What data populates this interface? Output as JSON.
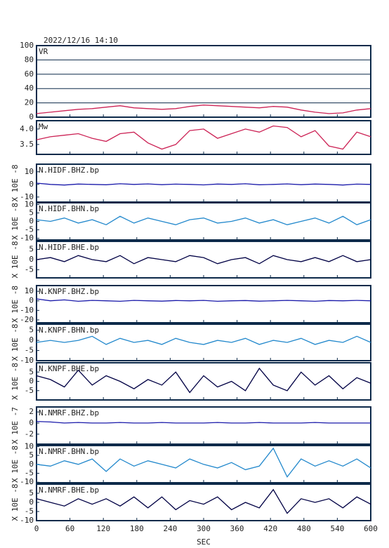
{
  "chart_data": [
    {
      "type": "line",
      "title": "2022/12/16  14:10",
      "label": "VR",
      "color": "#cc2255",
      "grid": true,
      "ylim": [
        0,
        100
      ],
      "yticks": [
        0,
        20,
        40,
        60,
        80,
        100
      ],
      "x": [
        0,
        25,
        50,
        75,
        100,
        125,
        150,
        175,
        200,
        225,
        250,
        275,
        300,
        325,
        350,
        375,
        400,
        425,
        450,
        475,
        500,
        525,
        550,
        575,
        600
      ],
      "values": [
        5,
        7,
        9,
        11,
        12,
        14,
        16,
        13,
        12,
        11,
        12,
        15,
        17,
        16,
        15,
        14,
        13,
        15,
        14,
        10,
        7,
        5,
        6,
        10,
        12
      ]
    },
    {
      "type": "line",
      "label": "Mw",
      "color": "#cc2255",
      "ylim": [
        3.18,
        4.27
      ],
      "yticks": [
        3.5,
        {
          "value": 4,
          "label": "4.0"
        }
      ],
      "x": [
        0,
        25,
        50,
        75,
        100,
        125,
        150,
        175,
        200,
        225,
        250,
        275,
        300,
        325,
        350,
        375,
        400,
        425,
        450,
        475,
        500,
        525,
        550,
        575,
        600
      ],
      "values": [
        3.65,
        3.75,
        3.8,
        3.85,
        3.7,
        3.6,
        3.85,
        3.9,
        3.55,
        3.35,
        3.5,
        3.95,
        4.0,
        3.7,
        3.85,
        4.0,
        3.9,
        4.1,
        4.05,
        3.75,
        3.95,
        3.45,
        3.35,
        3.9,
        3.75
      ]
    },
    {
      "type": "line",
      "label": "N.HIDF.BHZ.bp",
      "ylabel": "X 10E -8",
      "color": "#1a1aaa",
      "ylim": [
        -14,
        16
      ],
      "yticks": [
        -10,
        0,
        10
      ],
      "x": [
        0,
        25,
        50,
        75,
        100,
        125,
        150,
        175,
        200,
        225,
        250,
        275,
        300,
        325,
        350,
        375,
        400,
        425,
        450,
        475,
        500,
        525,
        550,
        575,
        600
      ],
      "values": [
        1,
        0,
        -0.5,
        0.3,
        0,
        -0.3,
        0.5,
        0,
        0.4,
        -0.2,
        0.2,
        0,
        -0.4,
        0.3,
        0,
        0.5,
        -0.3,
        0,
        0.4,
        -0.2,
        0.3,
        0,
        -0.5,
        0.2,
        0
      ]
    },
    {
      "type": "line",
      "label": "N.HIDF.BHN.bp",
      "ylabel": "X 10E -8",
      "color": "#2288cc",
      "ylim": [
        -11,
        11
      ],
      "yticks": [
        -10,
        -5,
        0,
        5,
        10
      ],
      "x": [
        0,
        25,
        50,
        75,
        100,
        125,
        150,
        175,
        200,
        225,
        250,
        275,
        300,
        325,
        350,
        375,
        400,
        425,
        450,
        475,
        500,
        525,
        550,
        575,
        600
      ],
      "values": [
        1,
        0,
        2,
        -1,
        1,
        -2,
        3,
        -1,
        2,
        0,
        -2,
        1,
        2,
        -1,
        0,
        2,
        -1,
        1,
        -2,
        0,
        2,
        -1,
        3,
        -2,
        1
      ]
    },
    {
      "type": "line",
      "label": "N.HIDF.BHE.bp",
      "ylabel": "X 10E -8",
      "color": "#000044",
      "ylim": [
        -9,
        9
      ],
      "yticks": [
        -5,
        0,
        5
      ],
      "x": [
        0,
        25,
        50,
        75,
        100,
        125,
        150,
        175,
        200,
        225,
        250,
        275,
        300,
        325,
        350,
        375,
        400,
        425,
        450,
        475,
        500,
        525,
        550,
        575,
        600
      ],
      "values": [
        0,
        1,
        -1,
        2,
        0,
        -1,
        2,
        -2,
        1,
        0,
        -1,
        2,
        1,
        -2,
        0,
        1,
        -2,
        2,
        0,
        -1,
        1,
        -1,
        2,
        -1,
        0
      ]
    },
    {
      "type": "line",
      "label": "N.KNPF.BHZ.bp",
      "ylabel": "X 10E -8",
      "color": "#1a1aaa",
      "ylim": [
        -23,
        16
      ],
      "yticks": [
        -20,
        -10,
        0,
        10
      ],
      "x": [
        0,
        25,
        50,
        75,
        100,
        125,
        150,
        175,
        200,
        225,
        250,
        275,
        300,
        325,
        350,
        375,
        400,
        425,
        450,
        475,
        500,
        525,
        550,
        575,
        600
      ],
      "values": [
        2,
        0,
        1,
        -0.5,
        0.5,
        0,
        -0.5,
        0.5,
        0,
        -0.3,
        0.3,
        0,
        0.5,
        -0.5,
        0,
        0.3,
        -0.3,
        0,
        0.5,
        0,
        -0.5,
        0.3,
        0,
        0.5,
        0
      ]
    },
    {
      "type": "line",
      "label": "N.KNPF.BHN.bp",
      "ylabel": "X 10E -8",
      "color": "#2288cc",
      "ylim": [
        -10,
        8
      ],
      "yticks": [
        -10,
        -5,
        0,
        5
      ],
      "x": [
        0,
        25,
        50,
        75,
        100,
        125,
        150,
        175,
        200,
        225,
        250,
        275,
        300,
        325,
        350,
        375,
        400,
        425,
        450,
        475,
        500,
        525,
        550,
        575,
        600
      ],
      "values": [
        -1,
        0,
        -1,
        0,
        2,
        -2,
        1,
        -1,
        0,
        -2,
        1,
        -1,
        -2,
        0,
        -1,
        1,
        -2,
        0,
        -1,
        1,
        -2,
        0,
        -1,
        2,
        -1
      ]
    },
    {
      "type": "line",
      "label": "N.KNPF.BHE.bp",
      "ylabel": "X 10E -8",
      "color": "#000044",
      "ylim": [
        -10,
        10
      ],
      "yticks": [
        -5,
        0,
        5
      ],
      "x": [
        0,
        25,
        50,
        75,
        100,
        125,
        150,
        175,
        200,
        225,
        250,
        275,
        300,
        325,
        350,
        375,
        400,
        425,
        450,
        475,
        500,
        525,
        550,
        575,
        600
      ],
      "values": [
        3,
        1,
        -3,
        6,
        -2,
        3,
        0,
        -4,
        1,
        -2,
        5,
        -6,
        3,
        -3,
        0,
        -5,
        7,
        -2,
        -5,
        5,
        -2,
        3,
        -4,
        2,
        -1
      ]
    },
    {
      "type": "line",
      "label": "N.NMRF.BHZ.bp",
      "ylabel": "X 10E -7",
      "color": "#1a1aaa",
      "ylim": [
        -3.8,
        2.9
      ],
      "yticks": [
        -2,
        0,
        2
      ],
      "x": [
        0,
        25,
        50,
        75,
        100,
        125,
        150,
        175,
        200,
        225,
        250,
        275,
        300,
        325,
        350,
        375,
        400,
        425,
        450,
        475,
        500,
        525,
        550,
        575,
        600
      ],
      "values": [
        0.3,
        0.2,
        0,
        0.1,
        0,
        0,
        0.1,
        0,
        0,
        0.1,
        0,
        0,
        0,
        0.1,
        0,
        0,
        0.1,
        0,
        0,
        0,
        0.1,
        0,
        0,
        0,
        0
      ]
    },
    {
      "type": "line",
      "label": "N.NMRF.BHN.bp",
      "ylabel": "X 10E -8",
      "color": "#2288cc",
      "ylim": [
        -10.3,
        10.5
      ],
      "yticks": [
        -10,
        -5,
        0,
        5,
        10
      ],
      "x": [
        0,
        25,
        50,
        75,
        100,
        125,
        150,
        175,
        200,
        225,
        250,
        275,
        300,
        325,
        350,
        375,
        400,
        425,
        450,
        475,
        500,
        525,
        550,
        575,
        600
      ],
      "values": [
        0,
        -1,
        2,
        0,
        3,
        -4,
        3,
        -1,
        2,
        0,
        -2,
        3,
        0,
        -2,
        1,
        -3,
        -1,
        9,
        -7,
        3,
        -1,
        2,
        -1,
        3,
        -2
      ]
    },
    {
      "type": "line",
      "label": "N.NMRF.BHE.bp",
      "ylabel": "X 10E -8",
      "color": "#000044",
      "ylim": [
        -10,
        10
      ],
      "yticks": [
        -10,
        -5,
        0,
        5
      ],
      "xlabel": "SEC",
      "xlim": [
        0,
        600
      ],
      "xticks": [
        0,
        60,
        120,
        180,
        240,
        300,
        360,
        420,
        480,
        540,
        600
      ],
      "x": [
        0,
        25,
        50,
        75,
        100,
        125,
        150,
        175,
        200,
        225,
        250,
        275,
        300,
        325,
        350,
        375,
        400,
        425,
        450,
        475,
        500,
        525,
        550,
        575,
        600
      ],
      "values": [
        2,
        0,
        -2,
        2,
        -1,
        2,
        -2,
        3,
        -3,
        3,
        -4,
        1,
        -1,
        3,
        -4,
        0,
        -3,
        7,
        -6,
        2,
        0,
        2,
        -3,
        3,
        -1
      ]
    }
  ]
}
